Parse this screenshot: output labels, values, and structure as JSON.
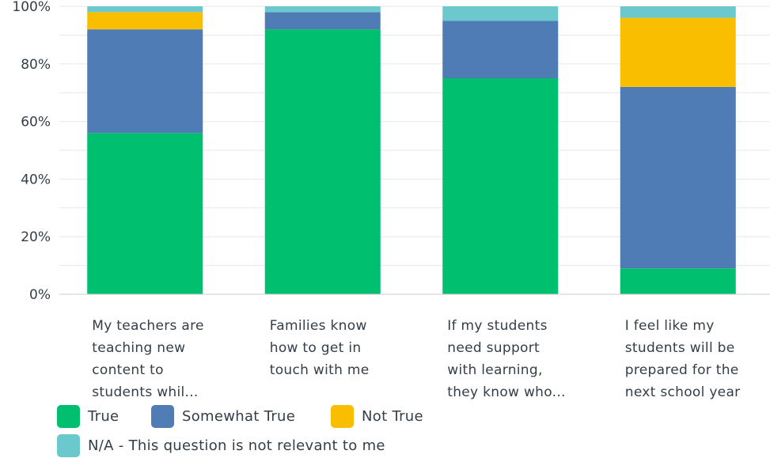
{
  "chart_data": {
    "type": "bar",
    "stacked": true,
    "title": "",
    "xlabel": "",
    "ylabel": "",
    "ylim": [
      0,
      100
    ],
    "yticks": [
      "0%",
      "20%",
      "40%",
      "60%",
      "80%",
      "100%"
    ],
    "grid": true,
    "legend_position": "bottom-left",
    "categories": [
      [
        "My teachers are",
        "teaching new",
        "content to",
        "students whil..."
      ],
      [
        "Families know",
        "how to get in",
        "touch with me"
      ],
      [
        "If my students",
        "need support",
        "with learning,",
        "they know who..."
      ],
      [
        "I feel like my",
        "students will be",
        "prepared for the",
        "next school year"
      ]
    ],
    "series": [
      {
        "name": "True",
        "color": "#00bf6f",
        "values": [
          56,
          92,
          75,
          9
        ]
      },
      {
        "name": "Somewhat True",
        "color": "#507cb6",
        "values": [
          36,
          6,
          20,
          63
        ]
      },
      {
        "name": "Not True",
        "color": "#f9be00",
        "values": [
          6,
          0,
          0,
          24
        ]
      },
      {
        "name": "N/A - This question is not relevant to me",
        "color": "#6bc8cd",
        "values": [
          2,
          2,
          5,
          4
        ]
      }
    ]
  }
}
